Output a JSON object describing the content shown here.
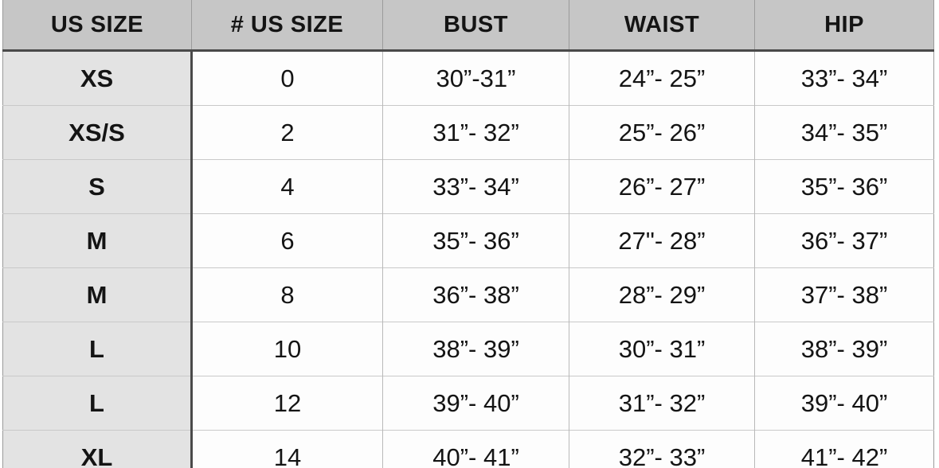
{
  "table": {
    "headers": [
      "US SIZE",
      "# US SIZE",
      "BUST",
      "WAIST",
      "HIP"
    ],
    "rows": [
      {
        "us_size": "XS",
        "num_us_size": "0",
        "bust": "30”-31”",
        "waist": "24”- 25”",
        "hip": "33”- 34”"
      },
      {
        "us_size": "XS/S",
        "num_us_size": "2",
        "bust": "31”- 32”",
        "waist": "25”- 26”",
        "hip": "34”- 35”"
      },
      {
        "us_size": "S",
        "num_us_size": "4",
        "bust": "33”- 34”",
        "waist": "26”- 27”",
        "hip": "35”- 36”"
      },
      {
        "us_size": "M",
        "num_us_size": "6",
        "bust": "35”- 36”",
        "waist": "27\"- 28”",
        "hip": "36”- 37”"
      },
      {
        "us_size": "M",
        "num_us_size": "8",
        "bust": "36”- 38”",
        "waist": "28”- 29”",
        "hip": "37”- 38”"
      },
      {
        "us_size": "L",
        "num_us_size": "10",
        "bust": "38”- 39”",
        "waist": "30”- 31”",
        "hip": "38”- 39”"
      },
      {
        "us_size": "L",
        "num_us_size": "12",
        "bust": "39”- 40”",
        "waist": "31”- 32”",
        "hip": "39”- 40”"
      },
      {
        "us_size": "XL",
        "num_us_size": "14",
        "bust": "40”- 41”",
        "waist": "32”- 33”",
        "hip": "41”- 42”"
      }
    ]
  },
  "colors": {
    "header_bg": "#c6c6c6",
    "first_col_bg": "#e3e3e3",
    "body_bg": "#fdfdfd",
    "thick_border": "#4a4a4a",
    "thin_border": "#c9c9c9",
    "header_separator": "#9b9b9b",
    "text": "#141414"
  },
  "chart_data": {
    "type": "table",
    "title": "Women's US size chart with body measurements",
    "columns": [
      "US SIZE",
      "# US SIZE",
      "BUST",
      "WAIST",
      "HIP"
    ],
    "rows": [
      [
        "XS",
        "0",
        "30”-31”",
        "24”- 25”",
        "33”- 34”"
      ],
      [
        "XS/S",
        "2",
        "31”- 32”",
        "25”- 26”",
        "34”- 35”"
      ],
      [
        "S",
        "4",
        "33”- 34”",
        "26”- 27”",
        "35”- 36”"
      ],
      [
        "M",
        "6",
        "35”- 36”",
        "27\"- 28”",
        "36”- 37”"
      ],
      [
        "M",
        "8",
        "36”- 38”",
        "28”- 29”",
        "37”- 38”"
      ],
      [
        "L",
        "10",
        "38”- 39”",
        "30”- 31”",
        "38”- 39”"
      ],
      [
        "L",
        "12",
        "39”- 40”",
        "31”- 32”",
        "39”- 40”"
      ],
      [
        "XL",
        "14",
        "40”- 41”",
        "32”- 33”",
        "41”- 42”"
      ]
    ],
    "layout": {
      "header_row_shaded": true,
      "first_column_shaded": true,
      "grid": true,
      "all_text_centered": true
    }
  }
}
